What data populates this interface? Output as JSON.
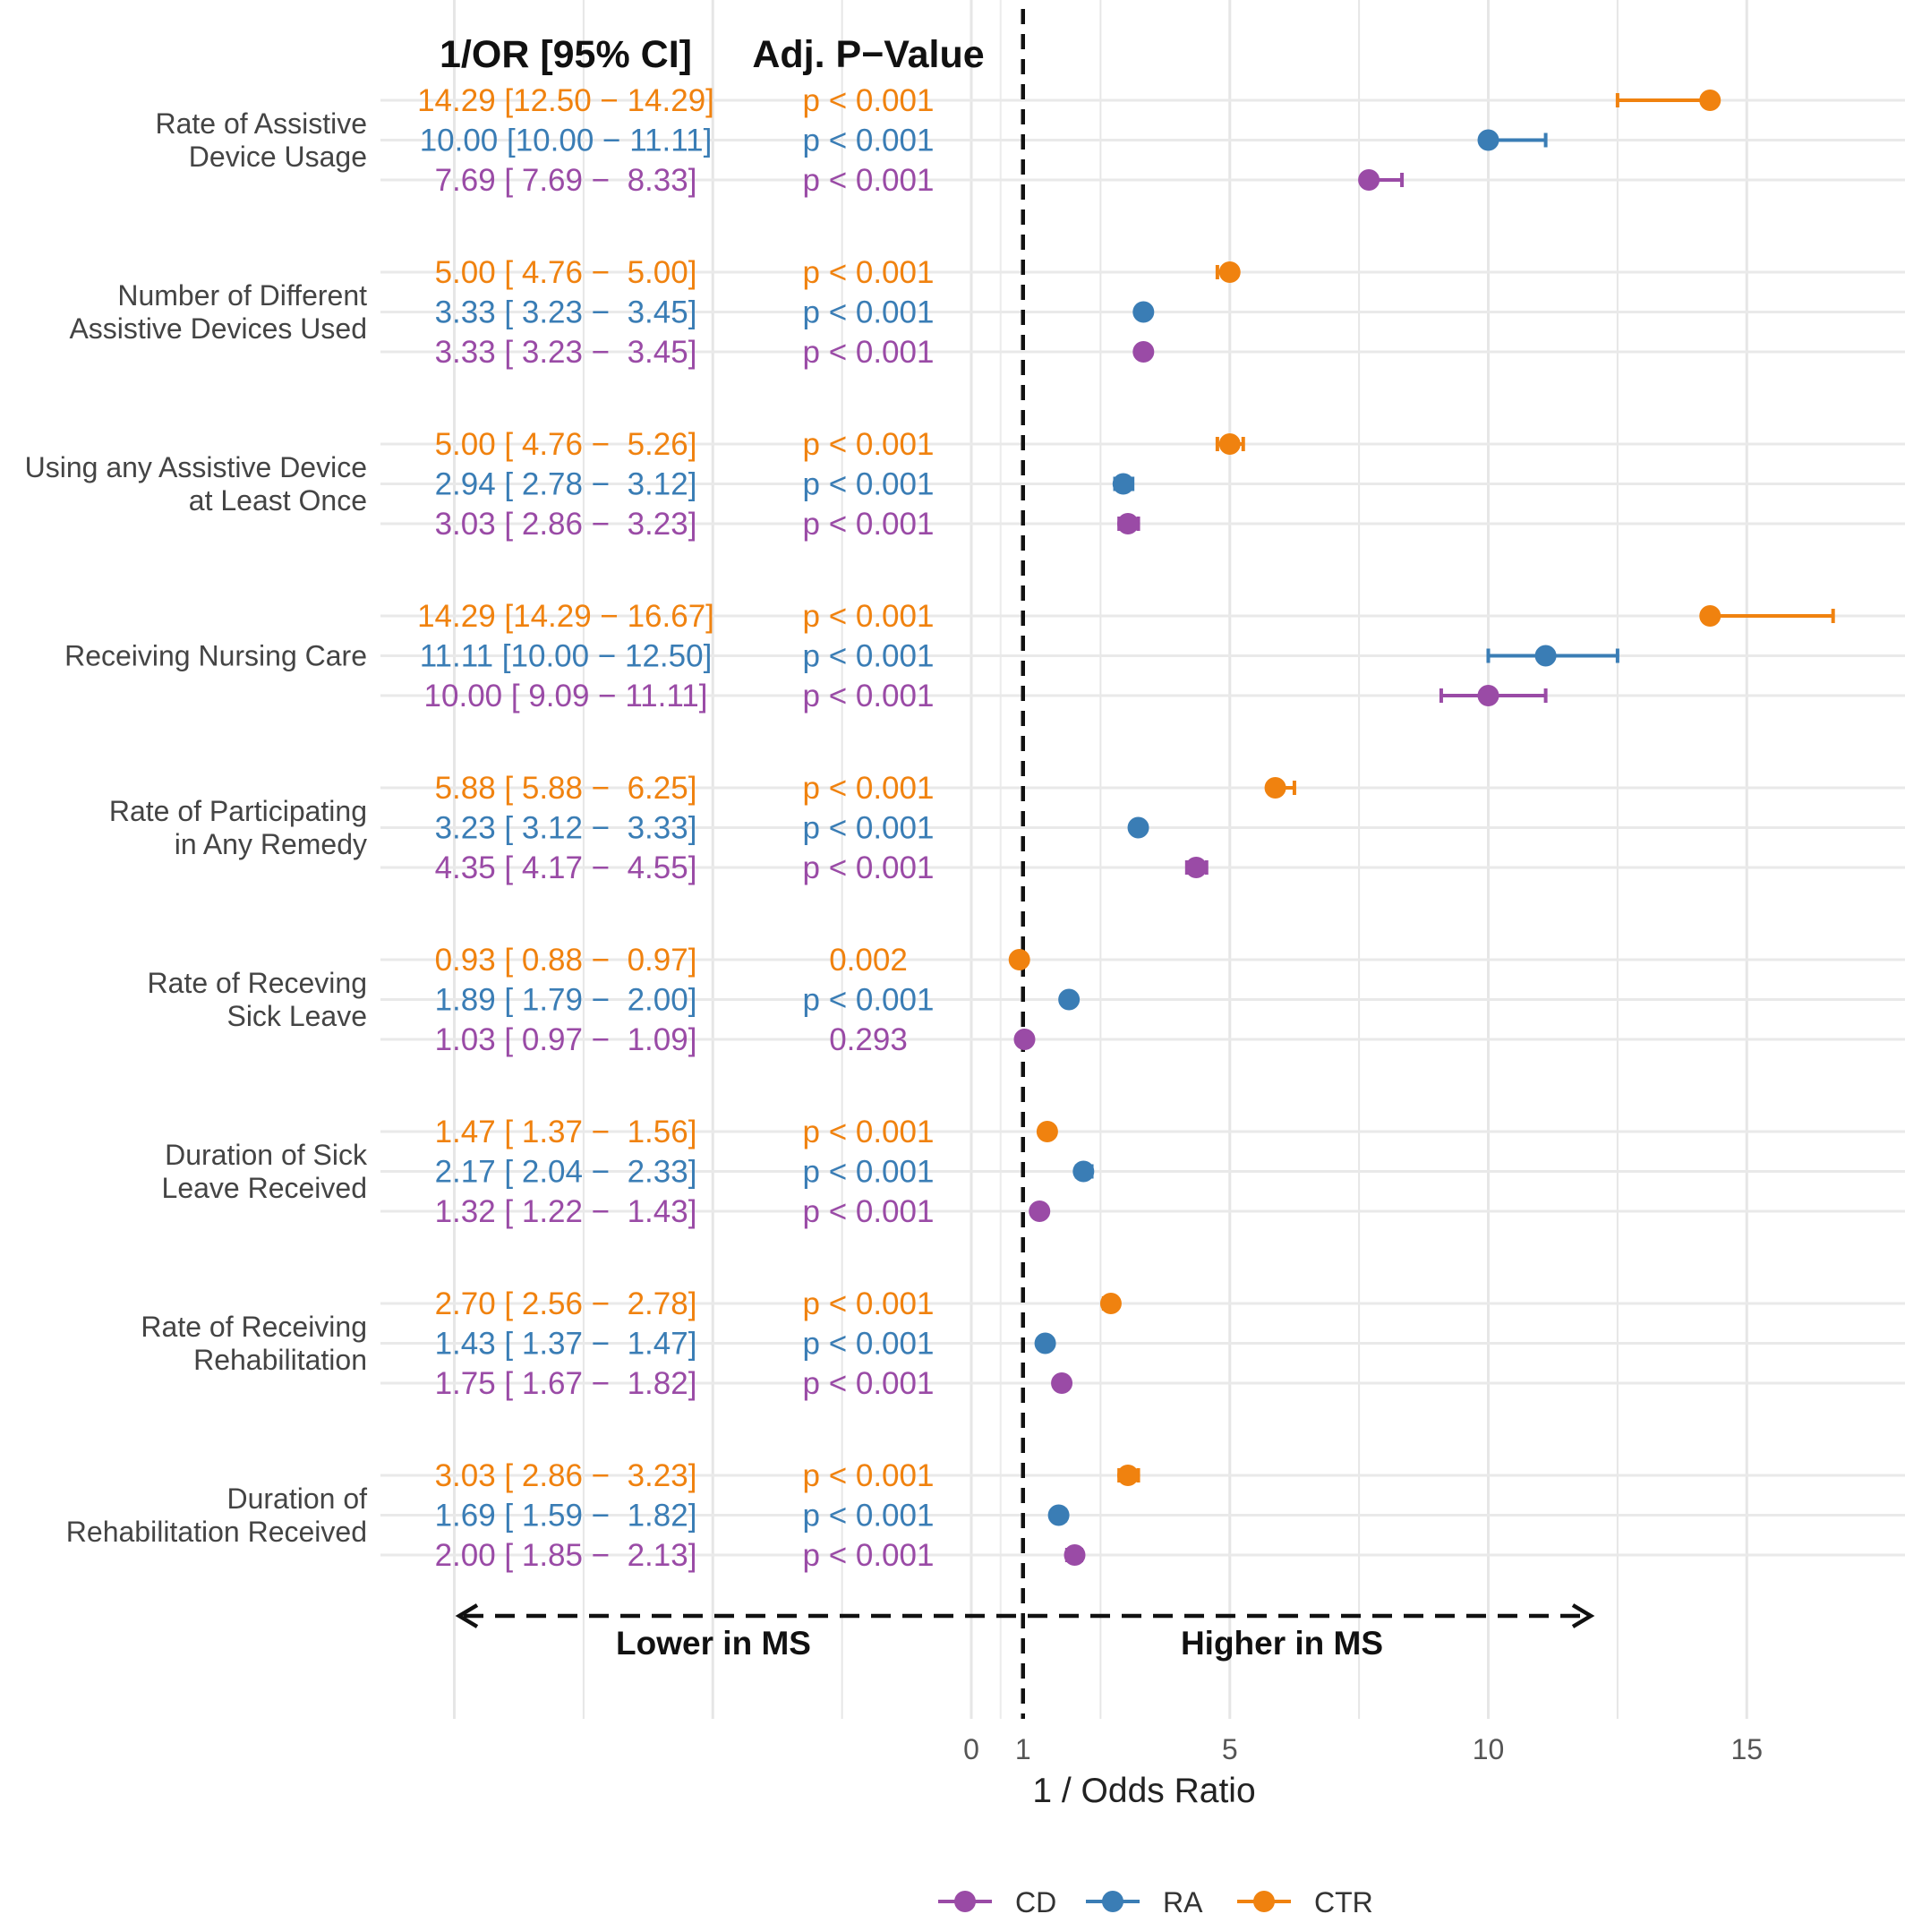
{
  "chart_data": {
    "type": "forest",
    "xlabel": "1 / Odds Ratio",
    "x_ticks": [
      0,
      1,
      5,
      10,
      15
    ],
    "xlim": [
      -10,
      17
    ],
    "reference_line": 1,
    "column_headers": {
      "ci": "1/OR [95% CI]",
      "p": "Adj. P−Value"
    },
    "direction_labels": {
      "lower": "Lower in MS",
      "higher": "Higher in MS"
    },
    "colors": {
      "CTR": "#F0820F",
      "RA": "#3A7DB5",
      "CD": "#9A4BA6"
    },
    "legend": [
      {
        "name": "CD",
        "color": "#9A4BA6"
      },
      {
        "name": "RA",
        "color": "#3A7DB5"
      },
      {
        "name": "CTR",
        "color": "#F0820F"
      }
    ],
    "outcomes": [
      {
        "label": [
          "Rate of Assistive",
          "Device Usage"
        ],
        "rows": [
          {
            "group": "CTR",
            "estimate": 14.29,
            "low": 12.5,
            "high": 14.29,
            "ci_text": "14.29 [12.50 − 14.29]",
            "p_text": "p < 0.001"
          },
          {
            "group": "RA",
            "estimate": 10.0,
            "low": 10.0,
            "high": 11.11,
            "ci_text": "10.00 [10.00 − 11.11]",
            "p_text": "p < 0.001"
          },
          {
            "group": "CD",
            "estimate": 7.69,
            "low": 7.69,
            "high": 8.33,
            "ci_text": "7.69 [ 7.69 −  8.33]",
            "p_text": "p < 0.001"
          }
        ]
      },
      {
        "label": [
          "Number of Different",
          "Assistive Devices Used"
        ],
        "rows": [
          {
            "group": "CTR",
            "estimate": 5.0,
            "low": 4.76,
            "high": 5.0,
            "ci_text": "5.00 [ 4.76 −  5.00]",
            "p_text": "p < 0.001"
          },
          {
            "group": "RA",
            "estimate": 3.33,
            "low": 3.23,
            "high": 3.45,
            "ci_text": "3.33 [ 3.23 −  3.45]",
            "p_text": "p < 0.001"
          },
          {
            "group": "CD",
            "estimate": 3.33,
            "low": 3.23,
            "high": 3.45,
            "ci_text": "3.33 [ 3.23 −  3.45]",
            "p_text": "p < 0.001"
          }
        ]
      },
      {
        "label": [
          "Using any Assistive Device",
          "at Least Once"
        ],
        "rows": [
          {
            "group": "CTR",
            "estimate": 5.0,
            "low": 4.76,
            "high": 5.26,
            "ci_text": "5.00 [ 4.76 −  5.26]",
            "p_text": "p < 0.001"
          },
          {
            "group": "RA",
            "estimate": 2.94,
            "low": 2.78,
            "high": 3.12,
            "ci_text": "2.94 [ 2.78 −  3.12]",
            "p_text": "p < 0.001"
          },
          {
            "group": "CD",
            "estimate": 3.03,
            "low": 2.86,
            "high": 3.23,
            "ci_text": "3.03 [ 2.86 −  3.23]",
            "p_text": "p < 0.001"
          }
        ]
      },
      {
        "label": [
          "Receiving Nursing Care"
        ],
        "rows": [
          {
            "group": "CTR",
            "estimate": 14.29,
            "low": 14.29,
            "high": 16.67,
            "ci_text": "14.29 [14.29 − 16.67]",
            "p_text": "p < 0.001"
          },
          {
            "group": "RA",
            "estimate": 11.11,
            "low": 10.0,
            "high": 12.5,
            "ci_text": "11.11 [10.00 − 12.50]",
            "p_text": "p < 0.001"
          },
          {
            "group": "CD",
            "estimate": 10.0,
            "low": 9.09,
            "high": 11.11,
            "ci_text": "10.00 [ 9.09 − 11.11]",
            "p_text": "p < 0.001"
          }
        ]
      },
      {
        "label": [
          "Rate of Participating",
          "in Any Remedy"
        ],
        "rows": [
          {
            "group": "CTR",
            "estimate": 5.88,
            "low": 5.88,
            "high": 6.25,
            "ci_text": "5.88 [ 5.88 −  6.25]",
            "p_text": "p < 0.001"
          },
          {
            "group": "RA",
            "estimate": 3.23,
            "low": 3.12,
            "high": 3.33,
            "ci_text": "3.23 [ 3.12 −  3.33]",
            "p_text": "p < 0.001"
          },
          {
            "group": "CD",
            "estimate": 4.35,
            "low": 4.17,
            "high": 4.55,
            "ci_text": "4.35 [ 4.17 −  4.55]",
            "p_text": "p < 0.001"
          }
        ]
      },
      {
        "label": [
          "Rate of Receving",
          "Sick Leave"
        ],
        "rows": [
          {
            "group": "CTR",
            "estimate": 0.93,
            "low": 0.88,
            "high": 0.97,
            "ci_text": "0.93 [ 0.88 −  0.97]",
            "p_text": "0.002"
          },
          {
            "group": "RA",
            "estimate": 1.89,
            "low": 1.79,
            "high": 2.0,
            "ci_text": "1.89 [ 1.79 −  2.00]",
            "p_text": "p < 0.001"
          },
          {
            "group": "CD",
            "estimate": 1.03,
            "low": 0.97,
            "high": 1.09,
            "ci_text": "1.03 [ 0.97 −  1.09]",
            "p_text": "0.293"
          }
        ]
      },
      {
        "label": [
          "Duration of Sick",
          "Leave Received"
        ],
        "rows": [
          {
            "group": "CTR",
            "estimate": 1.47,
            "low": 1.37,
            "high": 1.56,
            "ci_text": "1.47 [ 1.37 −  1.56]",
            "p_text": "p < 0.001"
          },
          {
            "group": "RA",
            "estimate": 2.17,
            "low": 2.04,
            "high": 2.33,
            "ci_text": "2.17 [ 2.04 −  2.33]",
            "p_text": "p < 0.001"
          },
          {
            "group": "CD",
            "estimate": 1.32,
            "low": 1.22,
            "high": 1.43,
            "ci_text": "1.32 [ 1.22 −  1.43]",
            "p_text": "p < 0.001"
          }
        ]
      },
      {
        "label": [
          "Rate of Receiving",
          "Rehabilitation"
        ],
        "rows": [
          {
            "group": "CTR",
            "estimate": 2.7,
            "low": 2.56,
            "high": 2.78,
            "ci_text": "2.70 [ 2.56 −  2.78]",
            "p_text": "p < 0.001"
          },
          {
            "group": "RA",
            "estimate": 1.43,
            "low": 1.37,
            "high": 1.47,
            "ci_text": "1.43 [ 1.37 −  1.47]",
            "p_text": "p < 0.001"
          },
          {
            "group": "CD",
            "estimate": 1.75,
            "low": 1.67,
            "high": 1.82,
            "ci_text": "1.75 [ 1.67 −  1.82]",
            "p_text": "p < 0.001"
          }
        ]
      },
      {
        "label": [
          "Duration of",
          "Rehabilitation Received"
        ],
        "rows": [
          {
            "group": "CTR",
            "estimate": 3.03,
            "low": 2.86,
            "high": 3.23,
            "ci_text": "3.03 [ 2.86 −  3.23]",
            "p_text": "p < 0.001"
          },
          {
            "group": "RA",
            "estimate": 1.69,
            "low": 1.59,
            "high": 1.82,
            "ci_text": "1.69 [ 1.59 −  1.82]",
            "p_text": "p < 0.001"
          },
          {
            "group": "CD",
            "estimate": 2.0,
            "low": 1.85,
            "high": 2.13,
            "ci_text": "2.00 [ 1.85 −  2.13]",
            "p_text": "p < 0.001"
          }
        ]
      }
    ]
  }
}
